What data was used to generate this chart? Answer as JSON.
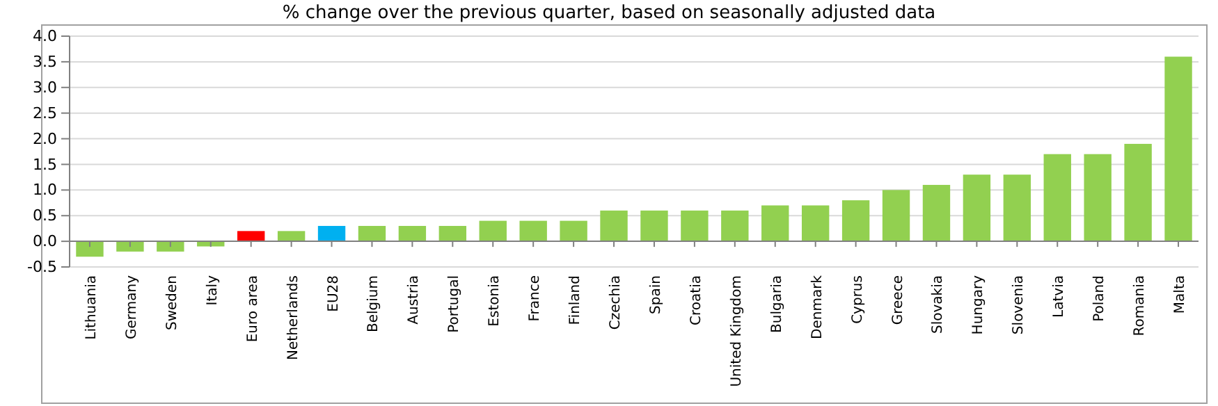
{
  "chart_data": {
    "type": "bar",
    "title": "% change over the previous quarter, based on seasonally adjusted data",
    "categories": [
      "Lithuania",
      "Germany",
      "Sweden",
      "Italy",
      "Euro area",
      "Netherlands",
      "EU28",
      "Belgium",
      "Austria",
      "Portugal",
      "Estonia",
      "France",
      "Finland",
      "Czechia",
      "Spain",
      "Croatia",
      "United Kingdom",
      "Bulgaria",
      "Denmark",
      "Cyprus",
      "Greece",
      "Slovakia",
      "Hungary",
      "Slovenia",
      "Latvia",
      "Poland",
      "Romania",
      "Malta"
    ],
    "values": [
      -0.3,
      -0.2,
      -0.2,
      -0.1,
      0.2,
      0.2,
      0.3,
      0.3,
      0.3,
      0.3,
      0.4,
      0.4,
      0.4,
      0.6,
      0.6,
      0.6,
      0.6,
      0.7,
      0.7,
      0.8,
      1.0,
      1.1,
      1.3,
      1.3,
      1.7,
      1.7,
      1.9,
      3.6
    ],
    "colors": [
      "#92d050",
      "#92d050",
      "#92d050",
      "#92d050",
      "#ff0000",
      "#92d050",
      "#00b0f0",
      "#92d050",
      "#92d050",
      "#92d050",
      "#92d050",
      "#92d050",
      "#92d050",
      "#92d050",
      "#92d050",
      "#92d050",
      "#92d050",
      "#92d050",
      "#92d050",
      "#92d050",
      "#92d050",
      "#92d050",
      "#92d050",
      "#92d050",
      "#92d050",
      "#92d050",
      "#92d050",
      "#92d050"
    ],
    "ylim": [
      -0.5,
      4.0
    ],
    "yticks": [
      {
        "value": -0.5,
        "label": "-0.5"
      },
      {
        "value": 0,
        "label": "0.0"
      },
      {
        "value": 0.5,
        "label": "0.5"
      },
      {
        "value": 1,
        "label": "1.0"
      },
      {
        "value": 1.5,
        "label": "1.5"
      },
      {
        "value": 2,
        "label": "2.0"
      },
      {
        "value": 2.5,
        "label": "2.5"
      },
      {
        "value": 3,
        "label": "3.0"
      },
      {
        "value": 3.5,
        "label": "3.5"
      },
      {
        "value": 4,
        "label": "4.0"
      }
    ],
    "grid": true
  }
}
